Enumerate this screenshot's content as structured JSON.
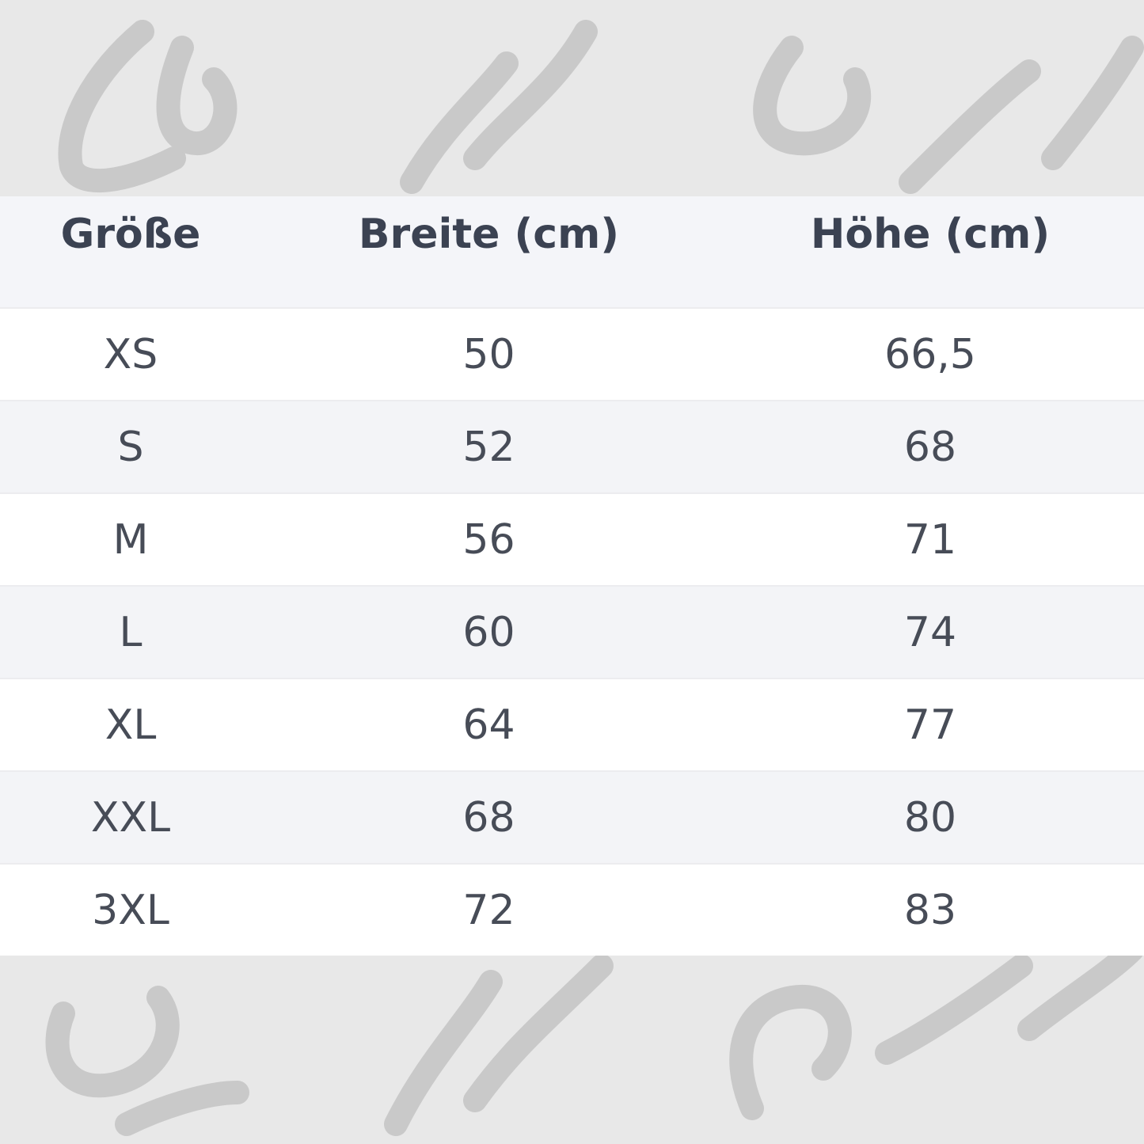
{
  "watermark": {
    "text": [
      "Low",
      "and",
      "Lower"
    ],
    "color": "#c9c9c9"
  },
  "table": {
    "headers": [
      "Größe",
      "Breite (cm)",
      "Höhe (cm)"
    ],
    "rows": [
      [
        "XS",
        "50",
        "66,5"
      ],
      [
        "S",
        "52",
        "68"
      ],
      [
        "M",
        "56",
        "71"
      ],
      [
        "L",
        "60",
        "74"
      ],
      [
        "XL",
        "64",
        "77"
      ],
      [
        "XXL",
        "68",
        "80"
      ],
      [
        "3XL",
        "72",
        "83"
      ]
    ]
  },
  "colors": {
    "header_bg": "#f4f5f9",
    "row_alt_bg": "#f3f4f7",
    "text": "#474c57",
    "page_bg": "#e8e8e8"
  }
}
